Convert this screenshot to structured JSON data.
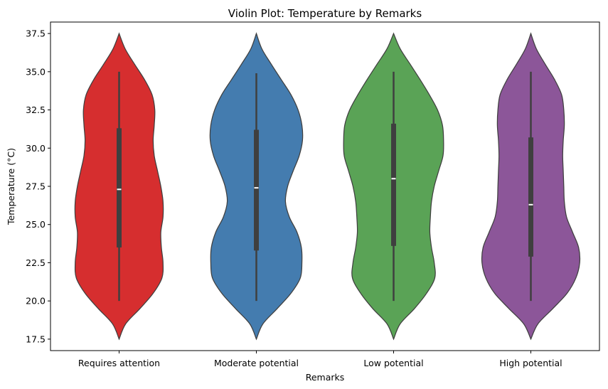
{
  "chart_data": {
    "type": "violin",
    "title": "Violin Plot: Temperature by Remarks",
    "xlabel": "Remarks",
    "ylabel": "Temperature (°C)",
    "ylim": [
      16.75,
      38.25
    ],
    "yticks": [
      "17.5",
      "20.0",
      "22.5",
      "25.0",
      "27.5",
      "30.0",
      "32.5",
      "35.0",
      "37.5"
    ],
    "grid": false,
    "categories": [
      "Requires attention",
      "Moderate potential",
      "Low potential",
      "High potential"
    ],
    "colors": [
      "#d62e2f",
      "#447caf",
      "#5aa356",
      "#8c5699"
    ],
    "violins": [
      {
        "category": "Requires attention",
        "min": 20.0,
        "q1": 23.5,
        "median": 27.3,
        "q3": 31.3,
        "max": 35.0,
        "density": [
          [
            17.5,
            0.0
          ],
          [
            18.5,
            0.12
          ],
          [
            19.5,
            0.38
          ],
          [
            20.5,
            0.62
          ],
          [
            21.5,
            0.78
          ],
          [
            22.5,
            0.8
          ],
          [
            23.5,
            0.77
          ],
          [
            24.5,
            0.76
          ],
          [
            25.5,
            0.8
          ],
          [
            26.5,
            0.8
          ],
          [
            27.5,
            0.76
          ],
          [
            28.5,
            0.7
          ],
          [
            29.5,
            0.64
          ],
          [
            30.5,
            0.62
          ],
          [
            31.5,
            0.64
          ],
          [
            32.5,
            0.65
          ],
          [
            33.5,
            0.6
          ],
          [
            34.5,
            0.46
          ],
          [
            35.5,
            0.28
          ],
          [
            36.5,
            0.11
          ],
          [
            37.5,
            0.0
          ]
        ]
      },
      {
        "category": "Moderate potential",
        "min": 20.0,
        "q1": 23.3,
        "median": 27.4,
        "q3": 31.2,
        "max": 34.9,
        "density": [
          [
            17.5,
            0.0
          ],
          [
            18.5,
            0.12
          ],
          [
            19.5,
            0.38
          ],
          [
            20.5,
            0.63
          ],
          [
            21.5,
            0.8
          ],
          [
            22.5,
            0.83
          ],
          [
            23.5,
            0.82
          ],
          [
            24.5,
            0.74
          ],
          [
            25.5,
            0.6
          ],
          [
            26.5,
            0.53
          ],
          [
            27.5,
            0.57
          ],
          [
            28.5,
            0.67
          ],
          [
            29.5,
            0.78
          ],
          [
            30.5,
            0.84
          ],
          [
            31.5,
            0.83
          ],
          [
            32.5,
            0.76
          ],
          [
            33.5,
            0.63
          ],
          [
            34.5,
            0.45
          ],
          [
            35.5,
            0.27
          ],
          [
            36.5,
            0.1
          ],
          [
            37.5,
            0.0
          ]
        ]
      },
      {
        "category": "Low potential",
        "min": 20.0,
        "q1": 23.6,
        "median": 28.0,
        "q3": 31.6,
        "max": 35.0,
        "density": [
          [
            17.5,
            0.0
          ],
          [
            18.5,
            0.12
          ],
          [
            19.5,
            0.38
          ],
          [
            20.5,
            0.6
          ],
          [
            21.5,
            0.75
          ],
          [
            22.5,
            0.74
          ],
          [
            23.5,
            0.69
          ],
          [
            24.5,
            0.66
          ],
          [
            25.5,
            0.67
          ],
          [
            26.5,
            0.69
          ],
          [
            27.5,
            0.74
          ],
          [
            28.5,
            0.82
          ],
          [
            29.5,
            0.9
          ],
          [
            30.5,
            0.91
          ],
          [
            31.5,
            0.89
          ],
          [
            32.5,
            0.8
          ],
          [
            33.5,
            0.65
          ],
          [
            34.5,
            0.48
          ],
          [
            35.5,
            0.3
          ],
          [
            36.5,
            0.12
          ],
          [
            37.5,
            0.0
          ]
        ]
      },
      {
        "category": "High potential",
        "min": 20.0,
        "q1": 22.9,
        "median": 26.3,
        "q3": 30.7,
        "max": 35.0,
        "density": [
          [
            17.5,
            0.0
          ],
          [
            18.5,
            0.13
          ],
          [
            19.5,
            0.4
          ],
          [
            20.5,
            0.66
          ],
          [
            21.5,
            0.82
          ],
          [
            22.5,
            0.89
          ],
          [
            23.5,
            0.87
          ],
          [
            24.5,
            0.76
          ],
          [
            25.5,
            0.65
          ],
          [
            26.5,
            0.61
          ],
          [
            27.5,
            0.6
          ],
          [
            28.5,
            0.59
          ],
          [
            29.5,
            0.58
          ],
          [
            30.5,
            0.59
          ],
          [
            31.5,
            0.61
          ],
          [
            32.5,
            0.6
          ],
          [
            33.5,
            0.56
          ],
          [
            34.5,
            0.43
          ],
          [
            35.5,
            0.26
          ],
          [
            36.5,
            0.1
          ],
          [
            37.5,
            0.0
          ]
        ]
      }
    ]
  }
}
